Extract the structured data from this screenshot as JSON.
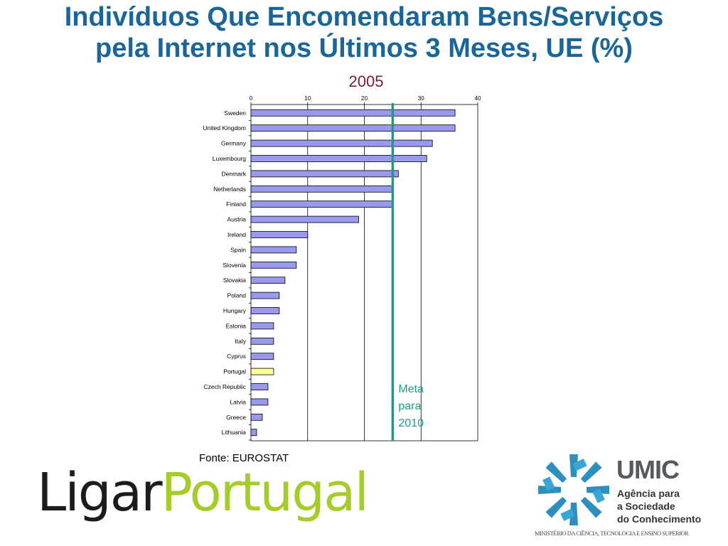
{
  "header": {
    "title_line1": "Indivíduos Que Encomendaram Bens/Serviços",
    "title_line2": "pela Internet nos Últimos 3 Meses, UE (%)"
  },
  "chart_data": {
    "type": "bar",
    "orientation": "horizontal",
    "subtitle": "2005",
    "categories": [
      "Sweden",
      "United Kingdom",
      "Germany",
      "Luxembourg",
      "Denmark",
      "Netherlands",
      "Finland",
      "Austria",
      "Ireland",
      "Spain",
      "Slovenia",
      "Slovakia",
      "Poland",
      "Hungary",
      "Estonia",
      "Italy",
      "Cyprus",
      "Portugal",
      "Czech Republic",
      "Latvia",
      "Greece",
      "Lithuania"
    ],
    "values": [
      36,
      36,
      32,
      31,
      26,
      25,
      25,
      19,
      10,
      8,
      8,
      6,
      5,
      5,
      4,
      4,
      4,
      4,
      3,
      3,
      2,
      1
    ],
    "xlim": [
      0,
      40
    ],
    "xticks": [
      0,
      10,
      20,
      30,
      40
    ],
    "grid": "vertical",
    "axis_position": "top",
    "bar_color": "#9999ee",
    "highlight": {
      "category": "Portugal",
      "color": "#ffff99"
    },
    "reference_line": {
      "value": 25,
      "color": "#1a9a8a",
      "label_lines": [
        "Meta",
        "para",
        "2010"
      ]
    }
  },
  "source": "Fonte: EUROSTAT",
  "logos": {
    "ligar_part1": "Ligar",
    "ligar_part2": "Portugal",
    "umic_name": "UMIC",
    "umic_line1": "Agência para",
    "umic_line2": "a Sociedade",
    "umic_line3": "do Conhecimento",
    "umic_footer": "MINISTÉRIO DA CIÊNCIA, TECNOLOGIA E ENSINO SUPERIOR"
  }
}
